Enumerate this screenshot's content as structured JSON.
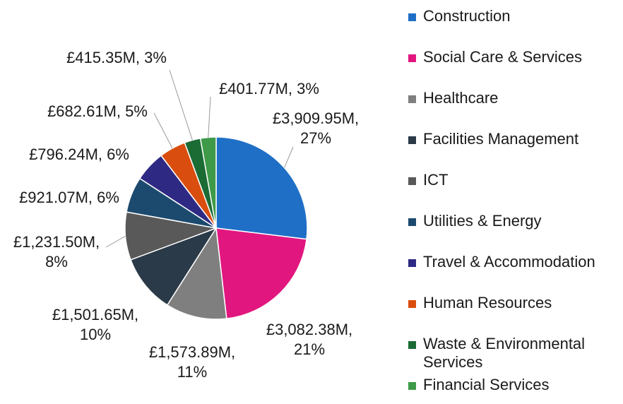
{
  "chart_data": {
    "type": "pie",
    "categories": [
      "Construction",
      "Social Care & Services",
      "Healthcare",
      "Facilities Management",
      "ICT",
      "Utilities & Energy",
      "Travel & Accommodation",
      "Human Resources",
      "Waste & Environmental Services",
      "Financial Services"
    ],
    "values": [
      3909.95,
      3082.38,
      1573.89,
      1501.65,
      1231.5,
      921.07,
      796.24,
      682.61,
      415.35,
      401.77
    ],
    "percents": [
      27,
      21,
      11,
      10,
      8,
      6,
      6,
      5,
      3,
      3
    ],
    "data_labels": [
      [
        "£3,909.95M,",
        "27%"
      ],
      [
        "£3,082.38M,",
        "21%"
      ],
      [
        "£1,573.89M,",
        "11%"
      ],
      [
        "£1,501.65M,",
        "10%"
      ],
      [
        "£1,231.50M,",
        "8%"
      ],
      [
        "£921.07M, 6%"
      ],
      [
        "£796.24M, 6%"
      ],
      [
        "£682.61M, 5%"
      ],
      [
        "£415.35M, 3%"
      ],
      [
        "£401.77M, 3%"
      ]
    ],
    "colors": [
      "#1f6fc6",
      "#e2167f",
      "#7f7f7f",
      "#2b3a48",
      "#595959",
      "#1c4a6e",
      "#2e2a84",
      "#d94e0f",
      "#1b6b34",
      "#3e9a48"
    ],
    "legend_position": "right",
    "start_angle_deg": 0,
    "direction": "clockwise"
  }
}
